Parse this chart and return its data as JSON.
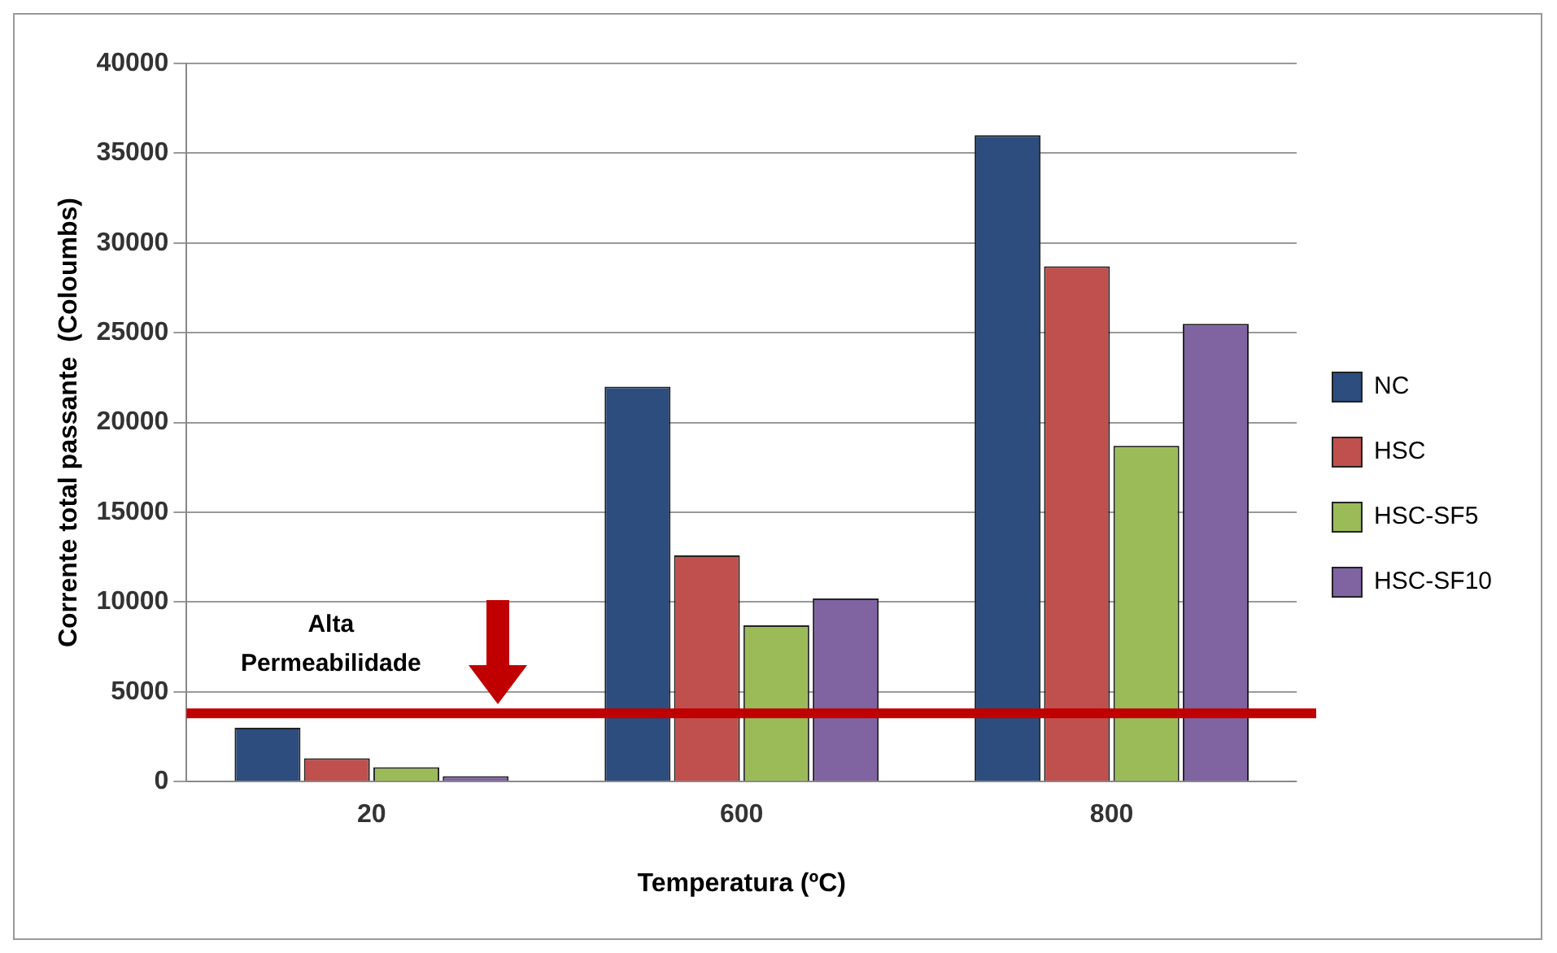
{
  "chart_data": {
    "type": "bar",
    "xlabel": "Temperatura (ºC)",
    "ylabel": "Corrente total passante  (Coloumbs)",
    "categories": [
      "20",
      "600",
      "800"
    ],
    "series": [
      {
        "name": "NC",
        "color": "#2c4d7e",
        "values": [
          3000,
          22000,
          36000
        ]
      },
      {
        "name": "HSC",
        "color": "#c0504d",
        "values": [
          1300,
          12600,
          28700
        ]
      },
      {
        "name": "HSC-SF5",
        "color": "#9bbb59",
        "values": [
          800,
          8700,
          18700
        ]
      },
      {
        "name": "HSC-SF10",
        "color": "#8064a2",
        "values": [
          300,
          10200,
          25500
        ]
      }
    ],
    "ylim": [
      0,
      40000
    ],
    "yticks": [
      0,
      5000,
      10000,
      15000,
      20000,
      25000,
      30000,
      35000,
      40000
    ],
    "grid": "y",
    "legend": "right",
    "ref_lines": [
      {
        "axis": "y",
        "value": 3800,
        "label": "Alta Permeabilidade",
        "color": "#c00000"
      }
    ]
  }
}
